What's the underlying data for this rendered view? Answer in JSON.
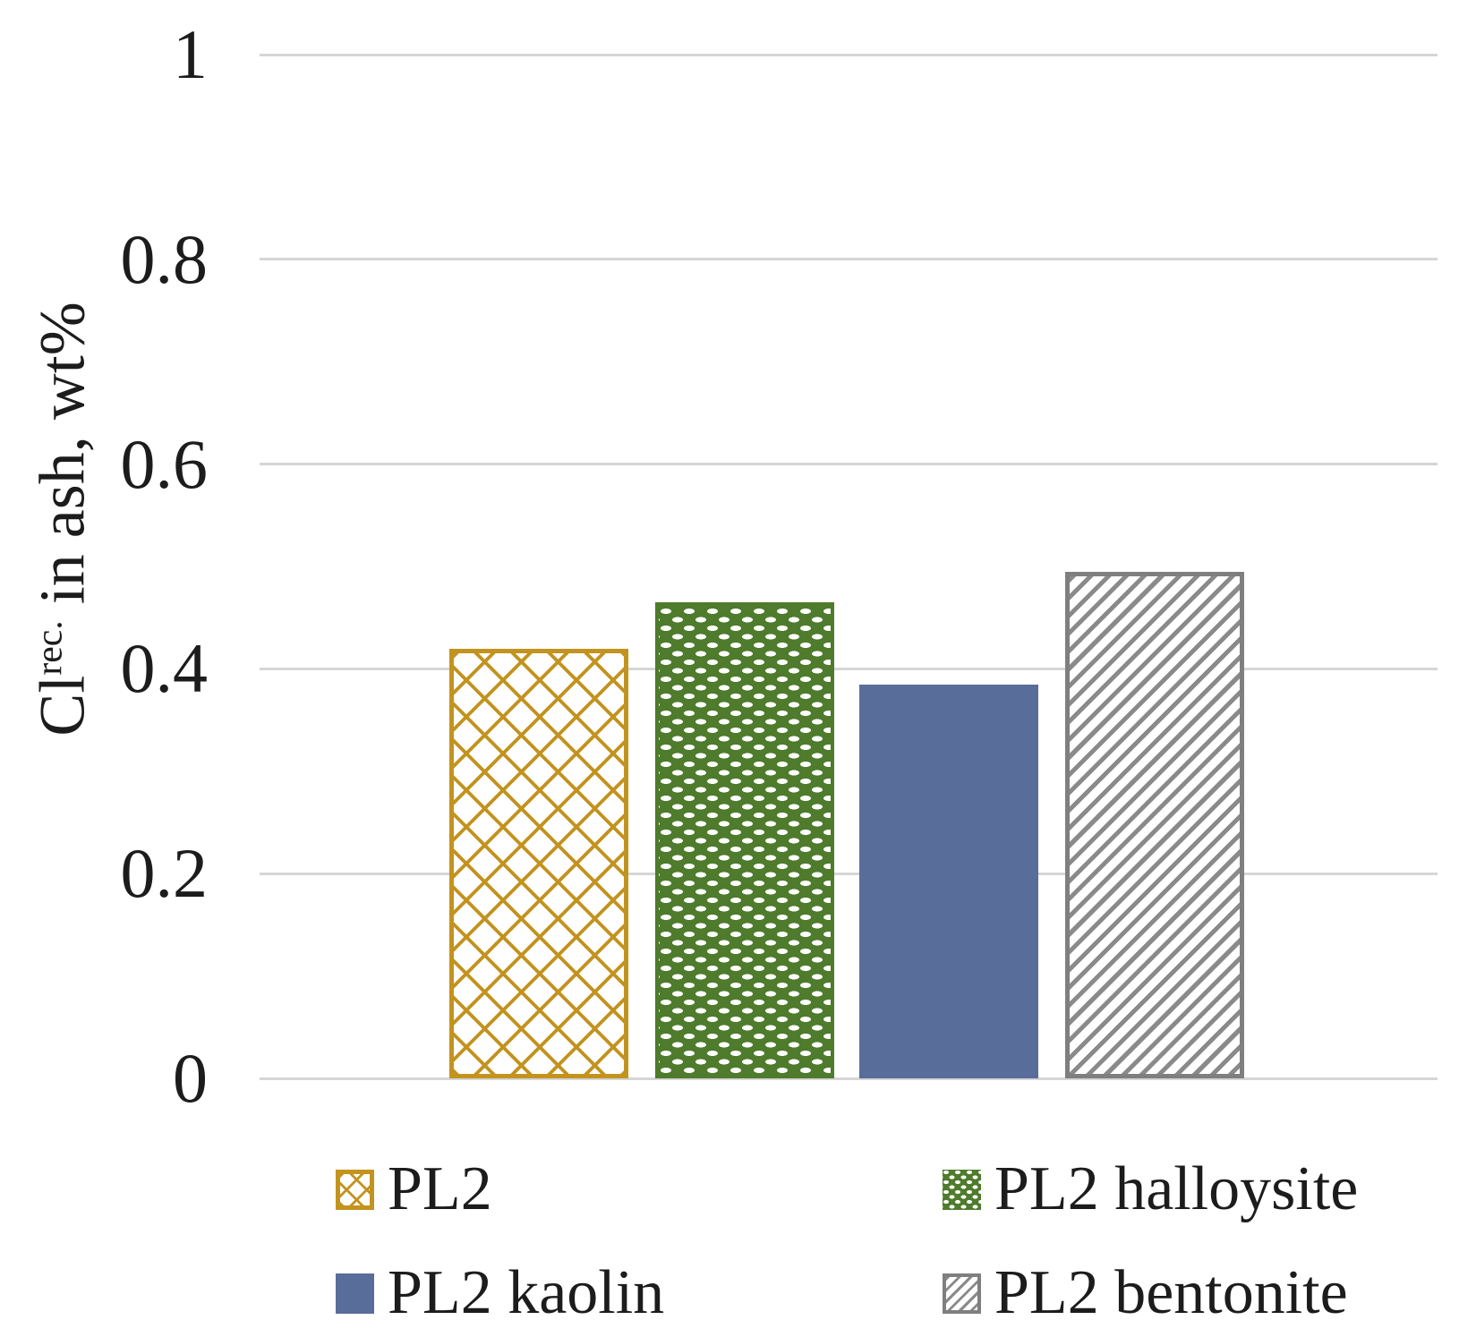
{
  "chart_data": {
    "type": "bar",
    "title": "",
    "ylabel": "Cl rec. in ash, wt%",
    "ylabel_parts": {
      "base": "Cl",
      "sup": "rec.",
      "rest": " in ash, wt%"
    },
    "categories": [
      "PL2",
      "PL2 halloysite",
      "PL2 kaolin",
      "PL2 bentonite"
    ],
    "values": [
      0.42,
      0.465,
      0.385,
      0.495
    ],
    "ylim": [
      0,
      1
    ],
    "yticks": [
      1,
      0.8,
      0.6,
      0.4,
      0.2,
      0
    ],
    "ytick_labels": [
      "1",
      "0.8",
      "0.6",
      "0.4",
      "0.2",
      "0"
    ],
    "grid": "horizontal",
    "legend_position": "bottom"
  },
  "legend": {
    "items": [
      {
        "label": "PL2",
        "series": "pl2"
      },
      {
        "label": "PL2 halloysite",
        "series": "halloysite"
      },
      {
        "label": "PL2 kaolin",
        "series": "kaolin"
      },
      {
        "label": "PL2 bentonite",
        "series": "bentonite"
      }
    ]
  },
  "colors": {
    "pl2": "#C3931F",
    "halloysite": "#4E7B2C",
    "kaolin": "#596D9B",
    "bentonite": "#7F7F7F",
    "gridline": "#D6D6D6",
    "text": "#1C1C1C"
  }
}
